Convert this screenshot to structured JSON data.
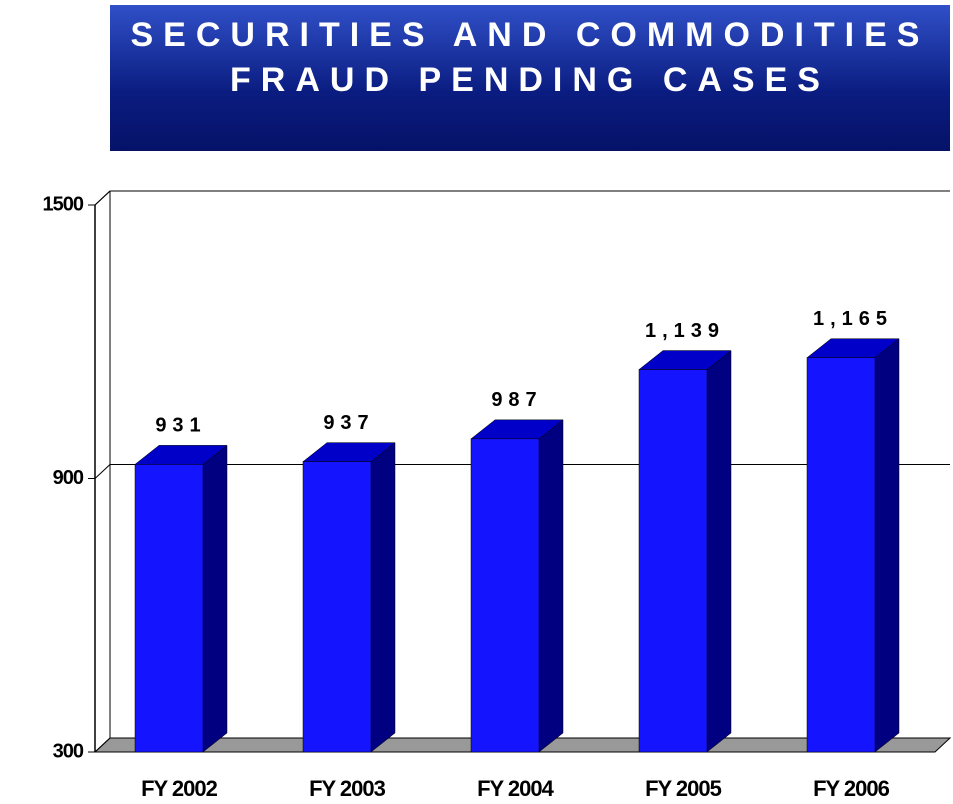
{
  "chart_data": {
    "type": "bar3d",
    "title": "SECURITIES AND COMMODITIES FRAUD PENDING CASES",
    "categories": [
      "FY 2002",
      "FY 2003",
      "FY 2004",
      "FY 2005",
      "FY 2006"
    ],
    "values": [
      931,
      937,
      987,
      1139,
      1165
    ],
    "value_labels": [
      "931",
      "937",
      "987",
      "1,139",
      "1,165"
    ],
    "color": "#1414ff",
    "ylim": [
      300,
      1500
    ],
    "yticks": [
      300,
      900,
      1500
    ],
    "grid": true
  }
}
